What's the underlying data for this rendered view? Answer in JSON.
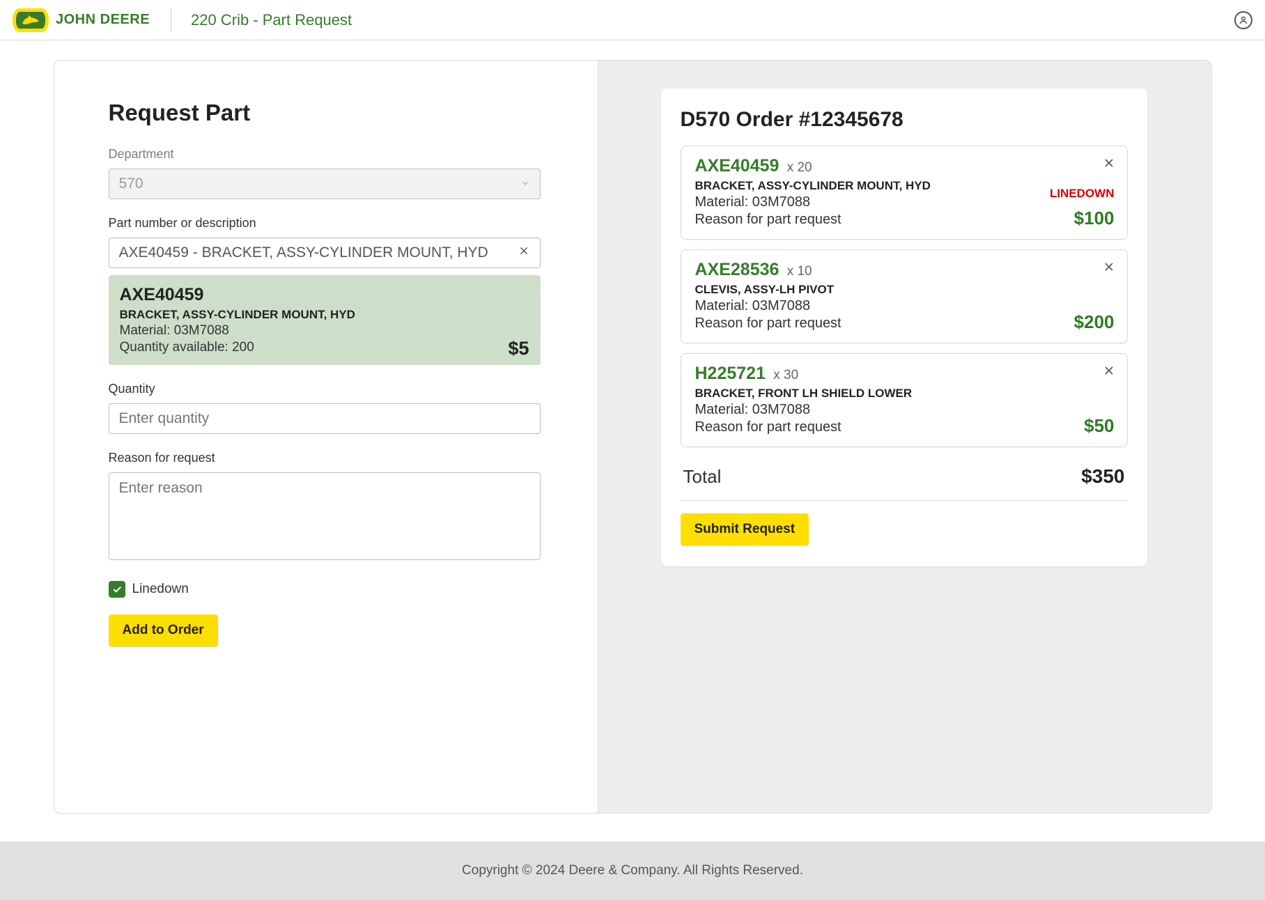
{
  "header": {
    "brand_text": "JOHN DEERE",
    "page_title": "220 Crib - Part Request"
  },
  "form": {
    "title": "Request Part",
    "department_label": "Department",
    "department_value": "570",
    "part_label": "Part number or description",
    "part_input_value": "AXE40459 - BRACKET, ASSY-CYLINDER MOUNT, HYD",
    "quantity_label": "Quantity",
    "quantity_placeholder": "Enter quantity",
    "reason_label": "Reason for request",
    "reason_placeholder": "Enter reason",
    "linedown_label": "Linedown",
    "linedown_checked": true,
    "add_button": "Add to Order"
  },
  "suggestion": {
    "code": "AXE40459",
    "desc": "BRACKET, ASSY-CYLINDER MOUNT, HYD",
    "material_line": "Material: 03M7088",
    "qty_line": "Quantity available: 200",
    "price": "$5"
  },
  "order": {
    "title": "D570 Order #12345678",
    "items": [
      {
        "code": "AXE40459",
        "qty": "x 20",
        "desc": "BRACKET, ASSY-CYLINDER MOUNT, HYD",
        "material_line": "Material: 03M7088",
        "reason_line": "Reason for part request",
        "status": "LINEDOWN",
        "price": "$100"
      },
      {
        "code": "AXE28536",
        "qty": "x 10",
        "desc": "CLEVIS, ASSY-LH PIVOT",
        "material_line": "Material: 03M7088",
        "reason_line": "Reason for part request",
        "status": "",
        "price": "$200"
      },
      {
        "code": "H225721",
        "qty": "x 30",
        "desc": "BRACKET, FRONT LH SHIELD LOWER",
        "material_line": "Material: 03M7088",
        "reason_line": "Reason for part request",
        "status": "",
        "price": "$50"
      }
    ],
    "total_label": "Total",
    "total_value": "$350",
    "submit_button": "Submit Request"
  },
  "footer": {
    "text": "Copyright © 2024 Deere & Company. All Rights Reserved."
  },
  "colors": {
    "brand_green": "#367c2b",
    "brand_yellow": "#ffde00",
    "status_red": "#d30000",
    "price_green": "#2f7a24",
    "suggest_bg": "#cddfc9",
    "right_bg": "#ededed",
    "footer_bg": "#e1e1e1"
  }
}
